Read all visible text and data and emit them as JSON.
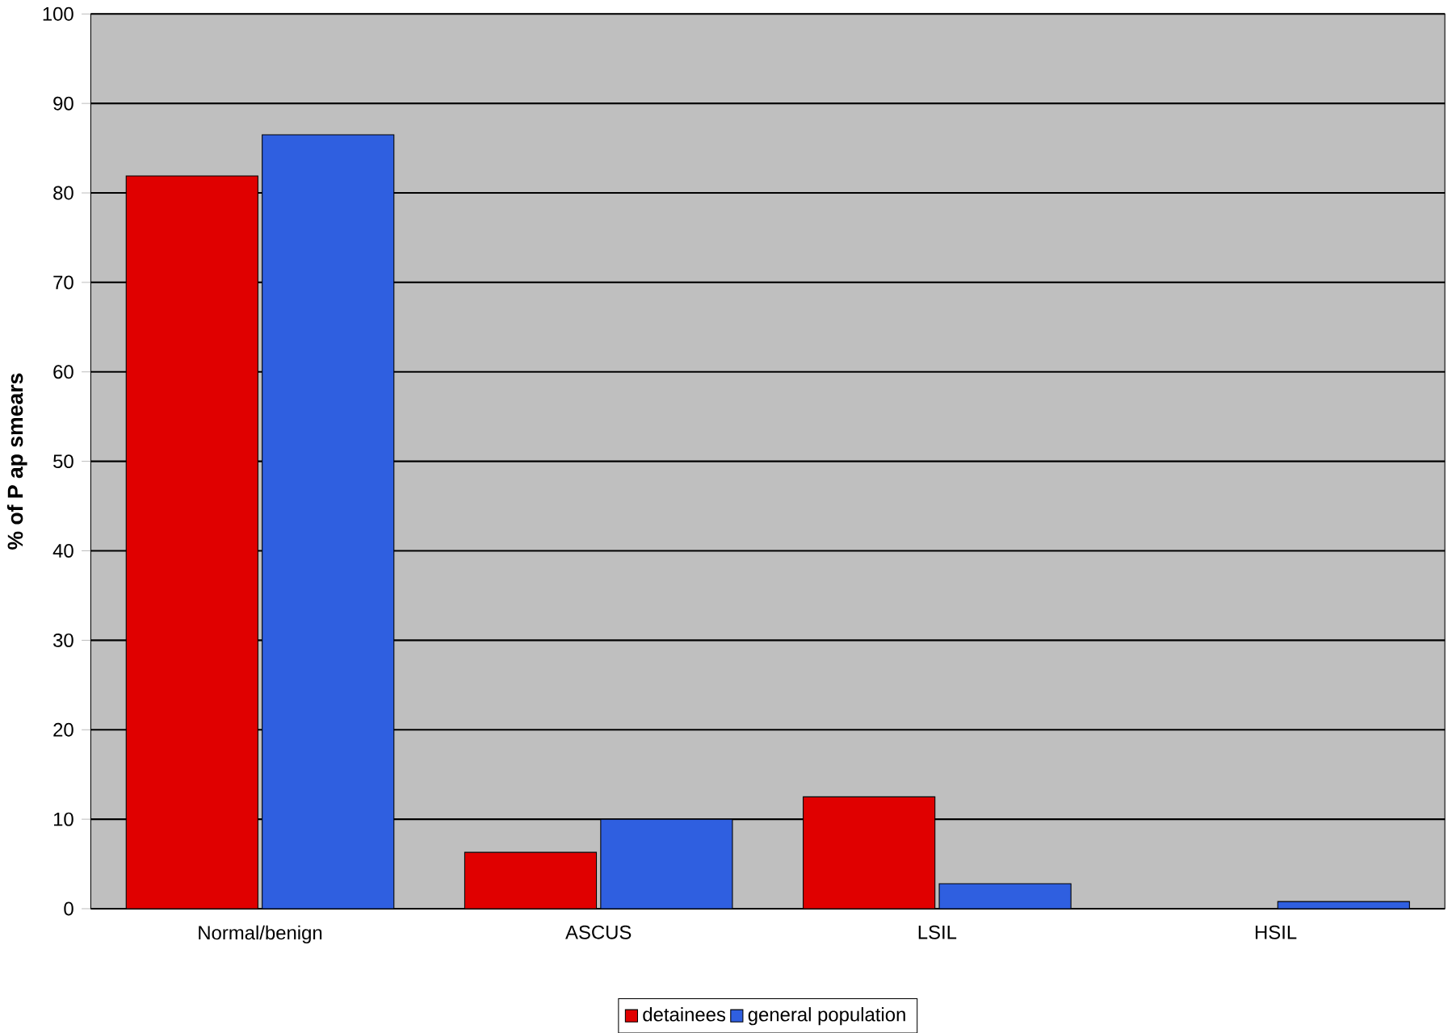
{
  "chart_data": {
    "type": "bar",
    "ylabel": "% of P ap smears",
    "categories": [
      "Normal/benign",
      "ASCUS",
      "LSIL",
      "HSIL"
    ],
    "series": [
      {
        "name": "detainees",
        "color": "#e00000",
        "values": [
          81.9,
          6.3,
          12.5,
          null
        ]
      },
      {
        "name": "general population",
        "color": "#2f5fe0",
        "values": [
          86.5,
          10.0,
          2.8,
          0.8
        ]
      }
    ],
    "ylim": [
      0,
      100
    ],
    "yticks": [
      0,
      10,
      20,
      30,
      40,
      50,
      60,
      70,
      80,
      90,
      100
    ],
    "grid": "y",
    "legend": "bottom"
  }
}
